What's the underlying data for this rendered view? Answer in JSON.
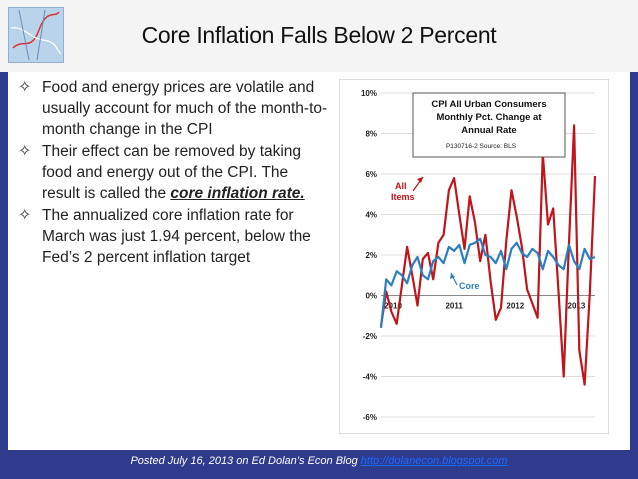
{
  "slide": {
    "title": "Core Inflation Falls Below 2 Percent",
    "bullets": [
      {
        "text": "Food and energy prices are volatile and usually account for much of the month-to-month change in the CPI"
      },
      {
        "text_before": "Their effect can be removed by taking food and energy out of the CPI. The result is called the ",
        "emphasis": "core inflation rate."
      },
      {
        "text": "The annualized core inflation rate for March was just 1.94 percent, below the Fed’s 2 percent inflation target"
      }
    ],
    "footer": {
      "text": "Posted July 16, 2013 on Ed Dolan’s Econ Blog ",
      "link": "http://dolanecon.blogspot.com"
    }
  },
  "chart_data": {
    "type": "line",
    "title": "CPI All Urban Consumers Monthly Pct. Change at Annual Rate",
    "subtitle": "P130716-2 Source: BLS",
    "ylim": [
      -6,
      10
    ],
    "yticks": [
      "10%",
      "8%",
      "6%",
      "4%",
      "2%",
      "0%",
      "-2%",
      "-4%",
      "-6%"
    ],
    "xticks": [
      "2010",
      "2011",
      "2012",
      "2013"
    ],
    "x_start": 2010.0,
    "x_end": 2013.5,
    "annotations": [
      {
        "text": "All Items",
        "series": "All Items"
      },
      {
        "text": "Core",
        "series": "Core"
      }
    ],
    "colors": {
      "all_items": "#c0151b",
      "core": "#2a7fc1",
      "grid": "#d0d0d0"
    },
    "series": [
      {
        "name": "All Items",
        "values": [
          -1.5,
          0.2,
          -0.8,
          -1.4,
          0.5,
          2.4,
          1.0,
          -0.5,
          1.8,
          2.1,
          0.8,
          2.6,
          3.0,
          5.2,
          5.8,
          4.0,
          2.3,
          4.9,
          3.6,
          1.7,
          3.0,
          0.7,
          -1.2,
          -0.6,
          2.7,
          5.2,
          3.9,
          2.4,
          0.3,
          -0.4,
          -1.1,
          7.0,
          3.5,
          4.3,
          0.2,
          -4.0,
          2.5,
          8.4,
          -2.7,
          -4.4,
          0.1,
          5.9
        ]
      },
      {
        "name": "Core",
        "values": [
          -1.6,
          0.8,
          0.5,
          1.2,
          1.0,
          0.6,
          1.5,
          1.9,
          1.0,
          0.8,
          1.7,
          1.9,
          1.6,
          2.4,
          2.2,
          2.5,
          1.6,
          2.5,
          2.6,
          2.8,
          2.0,
          1.9,
          1.6,
          2.2,
          1.3,
          2.3,
          2.6,
          2.1,
          1.9,
          2.3,
          2.1,
          1.3,
          2.2,
          1.9,
          1.5,
          1.3,
          2.5,
          1.7,
          1.3,
          2.3,
          1.8,
          1.9
        ]
      }
    ]
  }
}
